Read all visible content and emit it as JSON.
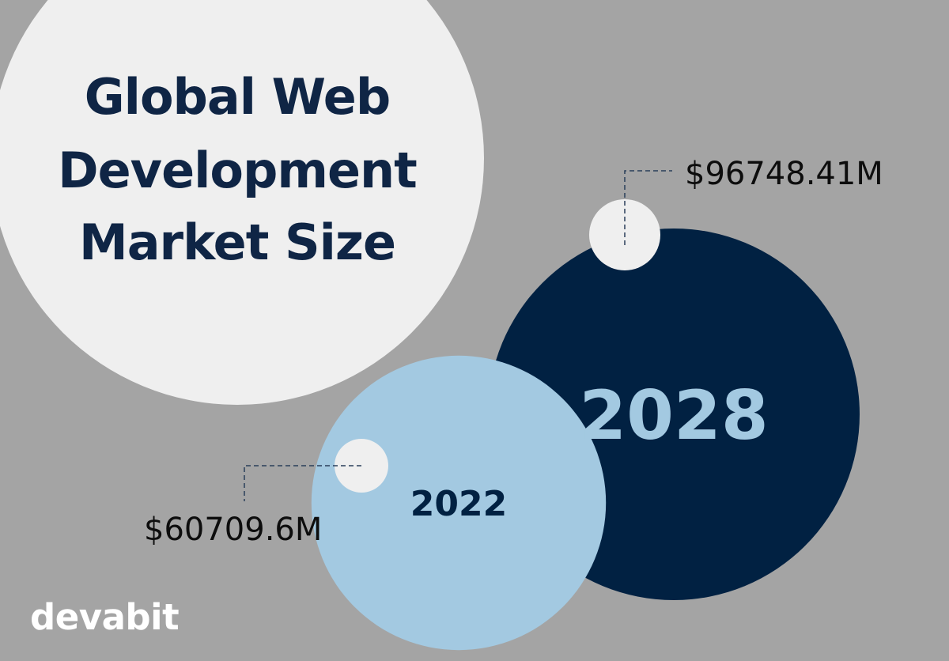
{
  "title": [
    "Global Web",
    "Development",
    "Market Size"
  ],
  "brand": "devabit",
  "colors": {
    "background": "#a4a4a4",
    "title_circle": "#efefef",
    "dark_navy": "#012142",
    "light_blue": "#a3c9e1",
    "marker": "#efefef",
    "title_text": "#0f2545"
  },
  "chart_data": {
    "type": "bubble",
    "title": "Global Web Development Market Size",
    "unit": "USD million",
    "categories": [
      "2022",
      "2028"
    ],
    "values": [
      60709.6,
      96748.41
    ],
    "value_labels": [
      "$60709.6M",
      "$96748.41M"
    ]
  }
}
